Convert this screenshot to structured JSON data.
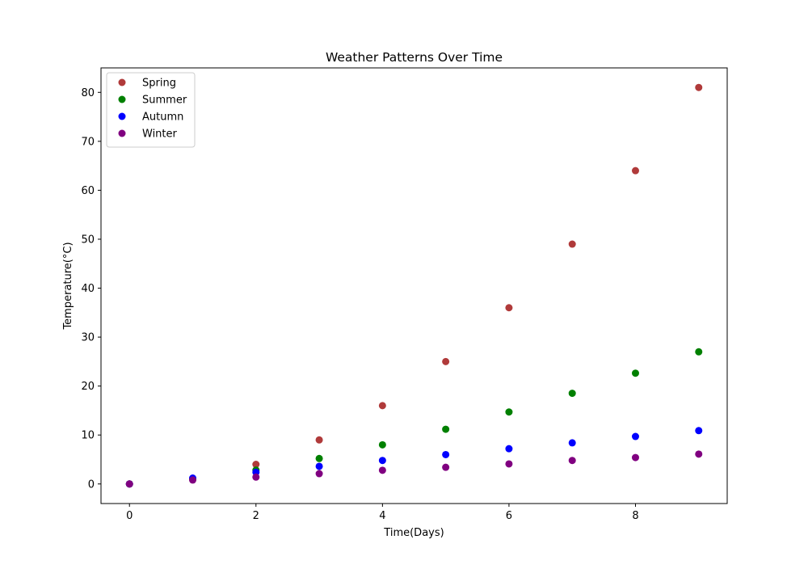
{
  "chart_data": {
    "type": "scatter",
    "title": "Weather Patterns Over Time",
    "xlabel": "Time(Days)",
    "ylabel": "Temperature(°C)",
    "xlim": [
      -0.45,
      9.45
    ],
    "ylim": [
      -4,
      85
    ],
    "xticks": [
      0,
      2,
      4,
      6,
      8
    ],
    "yticks": [
      0,
      10,
      20,
      30,
      40,
      50,
      60,
      70,
      80
    ],
    "grid": false,
    "legend_position": "upper-left",
    "x": [
      0,
      1,
      2,
      3,
      4,
      5,
      6,
      7,
      8,
      9
    ],
    "series": [
      {
        "name": "Spring",
        "color": "#b03a3a",
        "values": [
          0,
          1,
          4,
          9,
          16,
          25,
          36,
          49,
          64,
          81
        ]
      },
      {
        "name": "Summer",
        "color": "#008000",
        "values": [
          0,
          1,
          2.83,
          5.2,
          8,
          11.18,
          14.7,
          18.52,
          22.63,
          27
        ]
      },
      {
        "name": "Autumn",
        "color": "#0000ff",
        "values": [
          0,
          1.2,
          2.4,
          3.6,
          4.8,
          6,
          7.2,
          8.4,
          9.7,
          10.9
        ]
      },
      {
        "name": "Winter",
        "color": "#800080",
        "values": [
          0,
          0.8,
          1.4,
          2.1,
          2.8,
          3.4,
          4.1,
          4.8,
          5.4,
          6.1
        ]
      }
    ]
  }
}
